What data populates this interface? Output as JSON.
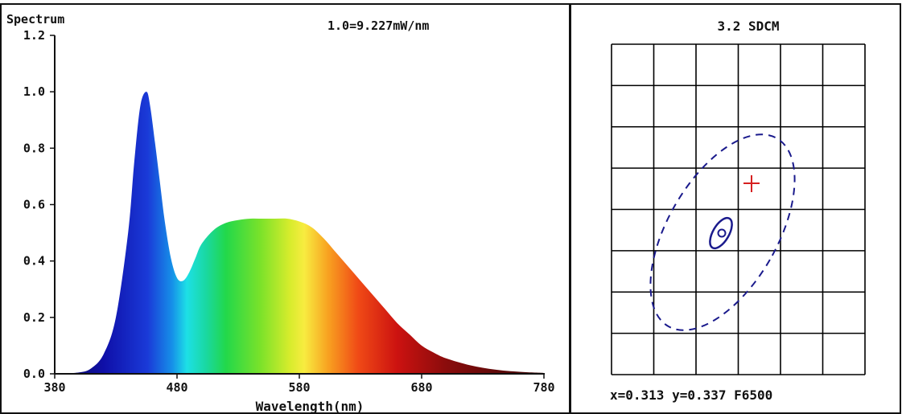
{
  "spectrum": {
    "title": "Spectrum",
    "annotation": "1.0=9.227mW/nm",
    "xlabel": "Wavelength(nm)",
    "x_ticks": [
      "380",
      "480",
      "580",
      "680",
      "780"
    ],
    "y_ticks": [
      "0.0",
      "0.2",
      "0.4",
      "0.6",
      "0.8",
      "1.0",
      "1.2"
    ]
  },
  "sdcm": {
    "title": "3.2 SDCM",
    "readout": "x=0.313 y=0.337 F6500",
    "colors": {
      "grid": "#000000",
      "ellipse": "#1a1a8c",
      "target": "#d62020"
    }
  },
  "chart_data": [
    {
      "type": "area",
      "title": "Spectrum",
      "xlabel": "Wavelength(nm)",
      "ylabel": "",
      "xlim": [
        380,
        780
      ],
      "ylim": [
        0,
        1.2
      ],
      "grid": false,
      "annotation": "1.0=9.227mW/nm",
      "fill": "visible-spectrum-gradient",
      "series": [
        {
          "x": [
            380,
            400,
            410,
            420,
            430,
            440,
            445,
            450,
            455,
            458,
            462,
            466,
            470,
            475,
            480,
            485,
            490,
            495,
            500,
            510,
            520,
            530,
            540,
            550,
            560,
            570,
            580,
            590,
            600,
            610,
            620,
            630,
            640,
            650,
            660,
            670,
            680,
            690,
            700,
            720,
            740,
            760,
            780
          ],
          "values": [
            0.0,
            0.005,
            0.02,
            0.07,
            0.2,
            0.5,
            0.75,
            0.95,
            1.0,
            0.95,
            0.82,
            0.68,
            0.54,
            0.41,
            0.34,
            0.33,
            0.36,
            0.41,
            0.46,
            0.51,
            0.535,
            0.545,
            0.55,
            0.55,
            0.55,
            0.55,
            0.54,
            0.52,
            0.48,
            0.43,
            0.38,
            0.33,
            0.28,
            0.23,
            0.18,
            0.14,
            0.1,
            0.075,
            0.055,
            0.03,
            0.015,
            0.007,
            0.003
          ]
        }
      ]
    },
    {
      "type": "scatter",
      "title": "3.2 SDCM",
      "subtype": "sdcm-ellipse-plot",
      "grid": true,
      "measured_point": {
        "x": 0.313,
        "y": 0.337
      },
      "reference": "F6500",
      "sdcm": 3.2
    }
  ]
}
